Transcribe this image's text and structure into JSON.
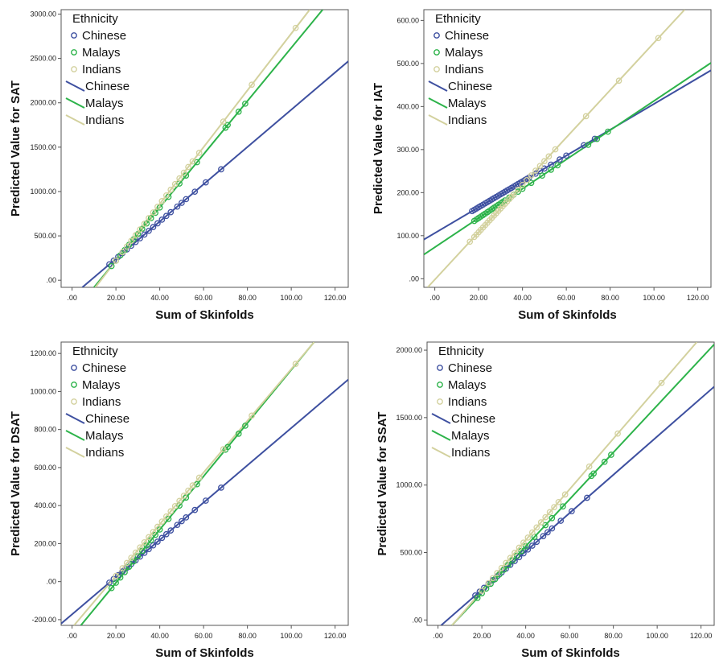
{
  "legend": {
    "title": "Ethnicity",
    "marker_entries": [
      "Chinese",
      "Malays",
      "Indians"
    ],
    "line_entries": [
      "Chinese",
      "Malays",
      "Indians"
    ]
  },
  "colors": {
    "Chinese": "#3e50a0",
    "Malays": "#2db34a",
    "Indians": "#d3d19e"
  },
  "chart_data": [
    {
      "type": "scatter",
      "title": "",
      "xlabel": "Sum of Skinfolds",
      "ylabel": "Predicted Value for SAT",
      "xlim": [
        -5,
        126
      ],
      "ylim": [
        -80,
        3050
      ],
      "xticks": [
        0,
        20,
        40,
        60,
        80,
        100,
        120
      ],
      "xtick_labels": [
        ".00",
        "20.00",
        "40.00",
        "60.00",
        "80.00",
        "100.00",
        "120.00"
      ],
      "yticks": [
        0,
        500,
        1000,
        1500,
        2000,
        2500,
        3000
      ],
      "ytick_labels": [
        ".00",
        "500.00",
        "1000.00",
        "1500.00",
        "2000.00",
        "2500.00",
        "3000.00"
      ],
      "series": [
        {
          "name": "Chinese",
          "fit": {
            "slope": 21.0,
            "intercept": -178
          },
          "x": [
            17,
            19,
            21,
            23,
            25,
            27,
            29,
            31,
            33,
            35,
            37,
            39,
            41,
            43,
            45,
            48,
            50,
            52,
            56,
            61,
            68
          ]
        },
        {
          "name": "Malays",
          "fit": {
            "slope": 30.0,
            "intercept": -380
          },
          "x": [
            18,
            20,
            22,
            24,
            26,
            28,
            30,
            32,
            34,
            36,
            38,
            40,
            44,
            49,
            52,
            57,
            70,
            71,
            76,
            79
          ]
        },
        {
          "name": "Indians",
          "fit": {
            "slope": 32.0,
            "intercept": -420
          },
          "x": [
            20,
            23,
            25,
            27,
            29,
            31,
            33,
            35,
            37,
            39,
            41,
            43,
            45,
            47,
            49,
            51,
            53,
            55,
            58,
            69,
            82,
            102
          ]
        }
      ]
    },
    {
      "type": "scatter",
      "title": "",
      "xlabel": "Sum of Skinfolds",
      "ylabel": "Predicted Value for IAT",
      "xlim": [
        -5,
        126
      ],
      "ylim": [
        -20,
        625
      ],
      "xticks": [
        0,
        20,
        40,
        60,
        80,
        100,
        120
      ],
      "xtick_labels": [
        ".00",
        "20.00",
        "40.00",
        "60.00",
        "80.00",
        "100.00",
        "120.00"
      ],
      "yticks": [
        0,
        100,
        200,
        300,
        400,
        500,
        600
      ],
      "ytick_labels": [
        ".00",
        "100.00",
        "200.00",
        "300.00",
        "400.00",
        "500.00",
        "600.00"
      ],
      "series": [
        {
          "name": "Chinese",
          "fit": {
            "slope": 3.0,
            "intercept": 106
          },
          "x": [
            17,
            18,
            19,
            20,
            21,
            22,
            23,
            24,
            25,
            26,
            27,
            28,
            29,
            30,
            31,
            32,
            33,
            34,
            35,
            36,
            37,
            38,
            39,
            40,
            41,
            42,
            43,
            46,
            48,
            50,
            53,
            57,
            60,
            68,
            73
          ]
        },
        {
          "name": "Malays",
          "fit": {
            "slope": 3.4,
            "intercept": 73
          },
          "x": [
            18,
            19,
            20,
            21,
            22,
            23,
            24,
            25,
            26,
            27,
            28,
            29,
            30,
            31,
            32,
            34,
            36,
            38,
            40,
            44,
            49,
            53,
            56,
            70,
            74,
            79
          ]
        },
        {
          "name": "Indians",
          "fit": {
            "slope": 5.5,
            "intercept": -2
          },
          "x": [
            16,
            18,
            19,
            20,
            21,
            22,
            23,
            24,
            25,
            26,
            27,
            28,
            29,
            30,
            31,
            32,
            33,
            34,
            35,
            36,
            38,
            40,
            42,
            44,
            46,
            48,
            50,
            52,
            55,
            69,
            84,
            102
          ]
        }
      ]
    },
    {
      "type": "scatter",
      "title": "",
      "xlabel": "Sum of Skinfolds",
      "ylabel": "Predicted Value for DSAT",
      "xlim": [
        -5,
        126
      ],
      "ylim": [
        -230,
        1260
      ],
      "xticks": [
        0,
        20,
        40,
        60,
        80,
        100,
        120
      ],
      "xtick_labels": [
        ".00",
        "20.00",
        "40.00",
        "60.00",
        "80.00",
        "100.00",
        "120.00"
      ],
      "yticks": [
        -200,
        0,
        200,
        400,
        600,
        800,
        1000,
        1200
      ],
      "ytick_labels": [
        "-200.00",
        ".00",
        "200.00",
        "400.00",
        "600.00",
        "800.00",
        "1000.00",
        "1200.00"
      ],
      "series": [
        {
          "name": "Chinese",
          "fit": {
            "slope": 9.8,
            "intercept": -172
          },
          "x": [
            17,
            19,
            21,
            23,
            25,
            27,
            29,
            31,
            33,
            35,
            37,
            39,
            41,
            43,
            45,
            48,
            50,
            52,
            56,
            61,
            68
          ]
        },
        {
          "name": "Malays",
          "fit": {
            "slope": 14.0,
            "intercept": -286
          },
          "x": [
            18,
            20,
            22,
            24,
            26,
            28,
            30,
            32,
            34,
            36,
            38,
            40,
            44,
            49,
            52,
            57,
            70,
            71,
            76,
            79
          ]
        },
        {
          "name": "Indians",
          "fit": {
            "slope": 13.6,
            "intercept": -242
          },
          "x": [
            20,
            23,
            25,
            27,
            29,
            31,
            33,
            35,
            37,
            39,
            41,
            43,
            45,
            47,
            49,
            51,
            53,
            55,
            58,
            69,
            82,
            102
          ]
        }
      ]
    },
    {
      "type": "scatter",
      "title": "",
      "xlabel": "Sum of Skinfolds",
      "ylabel": "Predicted Value for SSAT",
      "xlim": [
        -5,
        126
      ],
      "ylim": [
        -40,
        2060
      ],
      "xticks": [
        0,
        20,
        40,
        60,
        80,
        100,
        120
      ],
      "xtick_labels": [
        ".00",
        "20.00",
        "40.00",
        "60.00",
        "80.00",
        "100.00",
        "120.00"
      ],
      "yticks": [
        0,
        500,
        1000,
        1500,
        2000
      ],
      "ytick_labels": [
        ".00",
        "500.00",
        "1000.00",
        "1500.00",
        "2000.00"
      ],
      "series": [
        {
          "name": "Chinese",
          "fit": {
            "slope": 14.2,
            "intercept": -60
          },
          "x": [
            17,
            19,
            21,
            23,
            25,
            27,
            29,
            31,
            33,
            35,
            37,
            39,
            41,
            43,
            45,
            48,
            50,
            52,
            56,
            61,
            68
          ]
        },
        {
          "name": "Malays",
          "fit": {
            "slope": 17.4,
            "intercept": -150
          },
          "x": [
            18,
            20,
            22,
            24,
            26,
            28,
            30,
            32,
            34,
            36,
            38,
            40,
            44,
            49,
            52,
            57,
            70,
            71,
            76,
            79
          ]
        },
        {
          "name": "Indians",
          "fit": {
            "slope": 18.8,
            "intercept": -160
          },
          "x": [
            20,
            23,
            25,
            27,
            29,
            31,
            33,
            35,
            37,
            39,
            41,
            43,
            45,
            47,
            49,
            51,
            53,
            55,
            58,
            69,
            82,
            102
          ]
        }
      ]
    }
  ]
}
